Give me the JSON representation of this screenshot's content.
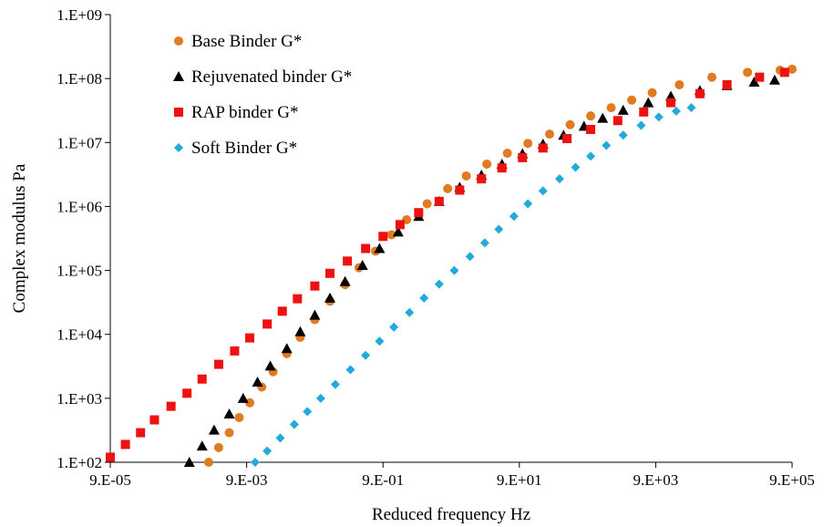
{
  "chart_data": {
    "type": "scatter",
    "title": "",
    "xlabel": "Reduced frequency Hz",
    "ylabel": "Complex modulus Pa",
    "x_scale": "log",
    "y_scale": "log",
    "xlim": [
      9e-05,
      900000
    ],
    "ylim": [
      100,
      1000000000
    ],
    "x_tick_labels": [
      "9.E-05",
      "9.E-03",
      "9.E-01",
      "9.E+01",
      "9.E+03",
      "9.E+05"
    ],
    "y_tick_labels": [
      "1.E+02",
      "1.E+03",
      "1.E+04",
      "1.E+05",
      "1.E+06",
      "1.E+07",
      "1.E+08",
      "1.E+09"
    ],
    "grid": false,
    "legend_position": "top-left",
    "colors": {
      "base": "#e07b22",
      "rejuvenated": "#000000",
      "rap": "#ee1111",
      "soft": "#22aadd"
    },
    "series": [
      {
        "name": "Base Binder G*",
        "marker": "circle",
        "color_key": "base",
        "points": [
          [
            0.0025,
            100
          ],
          [
            0.0035,
            170
          ],
          [
            0.005,
            290
          ],
          [
            0.007,
            500
          ],
          [
            0.01,
            850
          ],
          [
            0.015,
            1500
          ],
          [
            0.022,
            2600
          ],
          [
            0.035,
            5000
          ],
          [
            0.055,
            9000
          ],
          [
            0.09,
            17000
          ],
          [
            0.15,
            33000
          ],
          [
            0.25,
            60000
          ],
          [
            0.4,
            110000
          ],
          [
            0.7,
            200000
          ],
          [
            1.2,
            360000
          ],
          [
            2,
            620000
          ],
          [
            4,
            1100000
          ],
          [
            8,
            1900000
          ],
          [
            15,
            3000000
          ],
          [
            30,
            4600000
          ],
          [
            60,
            6800000
          ],
          [
            120,
            9700000
          ],
          [
            250,
            13500000
          ],
          [
            500,
            19000000
          ],
          [
            1000,
            26000000
          ],
          [
            2000,
            35000000
          ],
          [
            4000,
            46000000
          ],
          [
            8000,
            60000000
          ],
          [
            20000,
            80000000
          ],
          [
            60000,
            105000000
          ],
          [
            200000,
            125000000
          ],
          [
            600000,
            135000000
          ],
          [
            900000,
            140000000
          ]
        ]
      },
      {
        "name": "Rejuvenated binder G*",
        "marker": "triangle",
        "color_key": "rejuvenated",
        "points": [
          [
            0.0013,
            100
          ],
          [
            0.002,
            180
          ],
          [
            0.003,
            320
          ],
          [
            0.005,
            570
          ],
          [
            0.008,
            1000
          ],
          [
            0.013,
            1800
          ],
          [
            0.02,
            3200
          ],
          [
            0.035,
            6000
          ],
          [
            0.055,
            11000
          ],
          [
            0.09,
            20000
          ],
          [
            0.15,
            37000
          ],
          [
            0.25,
            67000
          ],
          [
            0.45,
            120000
          ],
          [
            0.8,
            220000
          ],
          [
            1.5,
            400000
          ],
          [
            3,
            700000
          ],
          [
            6,
            1200000
          ],
          [
            12,
            2000000
          ],
          [
            25,
            3100000
          ],
          [
            50,
            4600000
          ],
          [
            100,
            6700000
          ],
          [
            200,
            9500000
          ],
          [
            400,
            13000000
          ],
          [
            800,
            18000000
          ],
          [
            1500,
            24000000
          ],
          [
            3000,
            32000000
          ],
          [
            7000,
            42000000
          ],
          [
            15000,
            53000000
          ],
          [
            40000,
            65000000
          ],
          [
            100000,
            78000000
          ],
          [
            250000,
            88000000
          ],
          [
            500000,
            95000000
          ]
        ]
      },
      {
        "name": "RAP binder G*",
        "marker": "square",
        "color_key": "rap",
        "points": [
          [
            9e-05,
            120
          ],
          [
            0.00015,
            190
          ],
          [
            0.00025,
            290
          ],
          [
            0.0004,
            460
          ],
          [
            0.0007,
            750
          ],
          [
            0.0012,
            1200
          ],
          [
            0.002,
            2000
          ],
          [
            0.0035,
            3400
          ],
          [
            0.006,
            5500
          ],
          [
            0.01,
            8800
          ],
          [
            0.018,
            14500
          ],
          [
            0.03,
            23000
          ],
          [
            0.05,
            36000
          ],
          [
            0.09,
            57000
          ],
          [
            0.15,
            90000
          ],
          [
            0.27,
            140000
          ],
          [
            0.5,
            220000
          ],
          [
            0.9,
            340000
          ],
          [
            1.6,
            520000
          ],
          [
            3,
            800000
          ],
          [
            6,
            1200000
          ],
          [
            12,
            1800000
          ],
          [
            25,
            2700000
          ],
          [
            50,
            4000000
          ],
          [
            100,
            5800000
          ],
          [
            200,
            8200000
          ],
          [
            450,
            11500000
          ],
          [
            1000,
            16000000
          ],
          [
            2500,
            22000000
          ],
          [
            6000,
            30000000
          ],
          [
            15000,
            42000000
          ],
          [
            40000,
            58000000
          ],
          [
            100000,
            80000000
          ],
          [
            300000,
            105000000
          ],
          [
            700000,
            125000000
          ]
        ]
      },
      {
        "name": "Soft Binder G*",
        "marker": "diamond",
        "color_key": "soft",
        "points": [
          [
            0.012,
            100
          ],
          [
            0.018,
            150
          ],
          [
            0.028,
            240
          ],
          [
            0.045,
            390
          ],
          [
            0.07,
            620
          ],
          [
            0.11,
            1000
          ],
          [
            0.18,
            1650
          ],
          [
            0.3,
            2800
          ],
          [
            0.5,
            4700
          ],
          [
            0.8,
            7800
          ],
          [
            1.3,
            13000
          ],
          [
            2.2,
            22000
          ],
          [
            3.6,
            37000
          ],
          [
            6,
            61000
          ],
          [
            10,
            100000
          ],
          [
            17,
            165000
          ],
          [
            28,
            270000
          ],
          [
            45,
            440000
          ],
          [
            75,
            700000
          ],
          [
            120,
            1100000
          ],
          [
            200,
            1750000
          ],
          [
            350,
            2700000
          ],
          [
            600,
            4100000
          ],
          [
            1000,
            6100000
          ],
          [
            1700,
            9000000
          ],
          [
            3000,
            13000000
          ],
          [
            5500,
            18500000
          ],
          [
            10000,
            25000000
          ],
          [
            18000,
            31000000
          ],
          [
            30000,
            35000000
          ]
        ]
      }
    ]
  }
}
